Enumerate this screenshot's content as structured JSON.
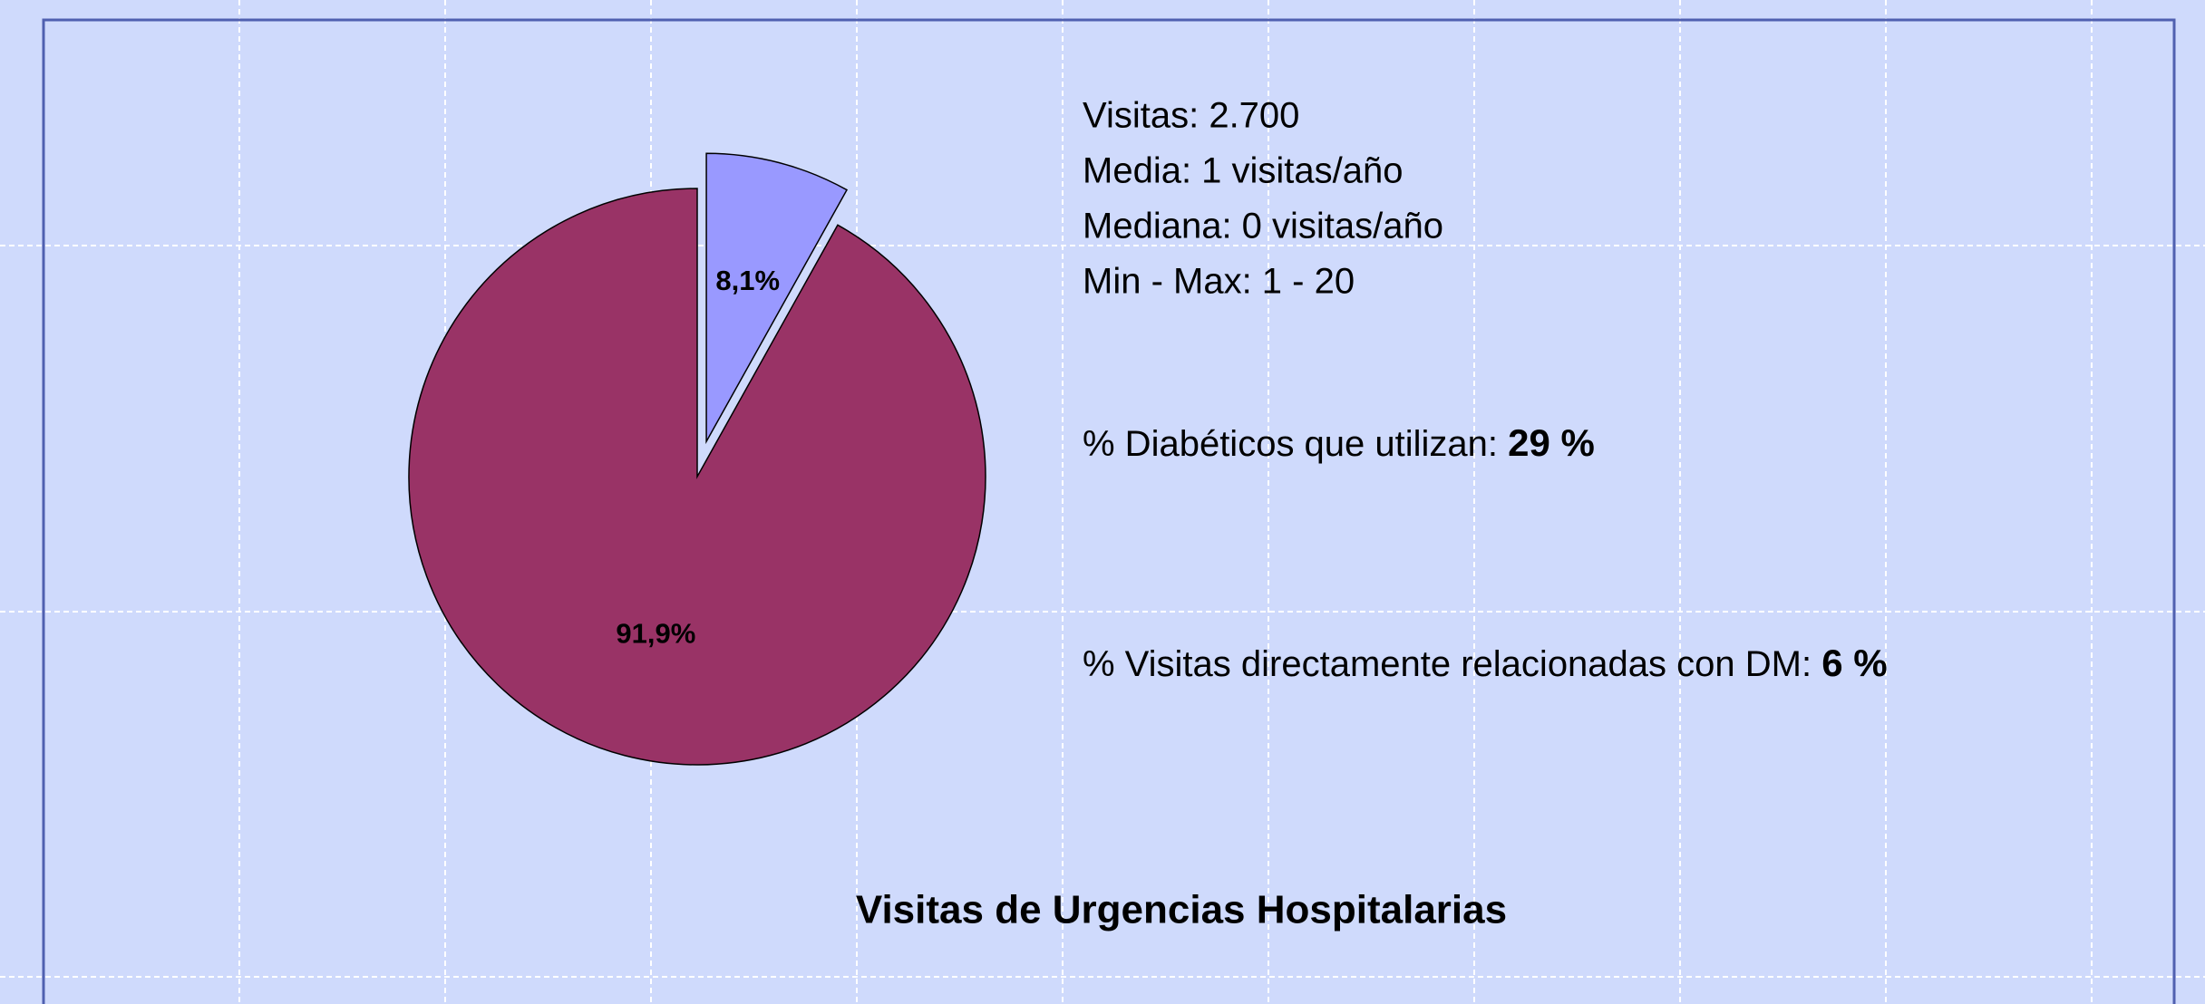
{
  "chart_data": {
    "type": "pie",
    "title": "Visitas de Urgencias Hospitalarias",
    "categories": [
      null,
      null
    ],
    "values": [
      8.1,
      91.9
    ],
    "value_labels": [
      "8,1%",
      "91,9%"
    ],
    "colors": [
      "#9999ff",
      "#993366"
    ],
    "explode": [
      true,
      false
    ],
    "annotations": [
      "Visitas: 2.700",
      "Media: 1 visitas/año",
      "Mediana: 0 visitas/año",
      "Min - Max: 1 - 20"
    ],
    "highlights": [
      {
        "text": "% Diabéticos que utilizan:",
        "emphasis": "29 %"
      },
      {
        "text": "% Visitas directamente relacionadas con DM:",
        "emphasis": "6 %"
      }
    ]
  }
}
